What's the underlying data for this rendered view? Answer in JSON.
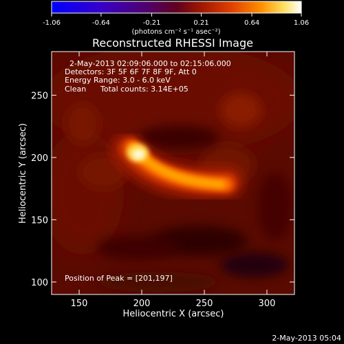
{
  "chart_data": {
    "type": "heatmap",
    "title": "Reconstructed RHESSI Image",
    "xlabel": "Heliocentric X (arcsec)",
    "ylabel": "Heliocentric Y (arcsec)",
    "xlim": [
      128,
      322
    ],
    "ylim": [
      90,
      285
    ],
    "x_ticks": [
      150,
      200,
      250,
      300
    ],
    "y_ticks": [
      100,
      150,
      200,
      250
    ],
    "colorbar": {
      "range": [
        -1.06,
        1.06
      ],
      "ticks": [
        "-1.06",
        "-0.64",
        "-0.21",
        "0.21",
        "0.64",
        "1.06"
      ],
      "unit_label": "(photons cm⁻² s⁻¹ asec⁻²)"
    },
    "annotations": {
      "time_range": "2-May-2013 02:09:06.000 to 02:15:06.000",
      "detectors": "Detectors: 3F 5F 6F 7F 8F 9F, Att 0",
      "energy_range": "Energy Range: 3.0 - 6.0 keV",
      "clean_label": "Clean",
      "total_counts": "Total counts: 3.14E+05",
      "peak_position": "Position of Peak = [201,197]"
    },
    "peak": [
      201,
      197
    ],
    "footer_date": "2-May-2013 05:04",
    "grid": false
  }
}
